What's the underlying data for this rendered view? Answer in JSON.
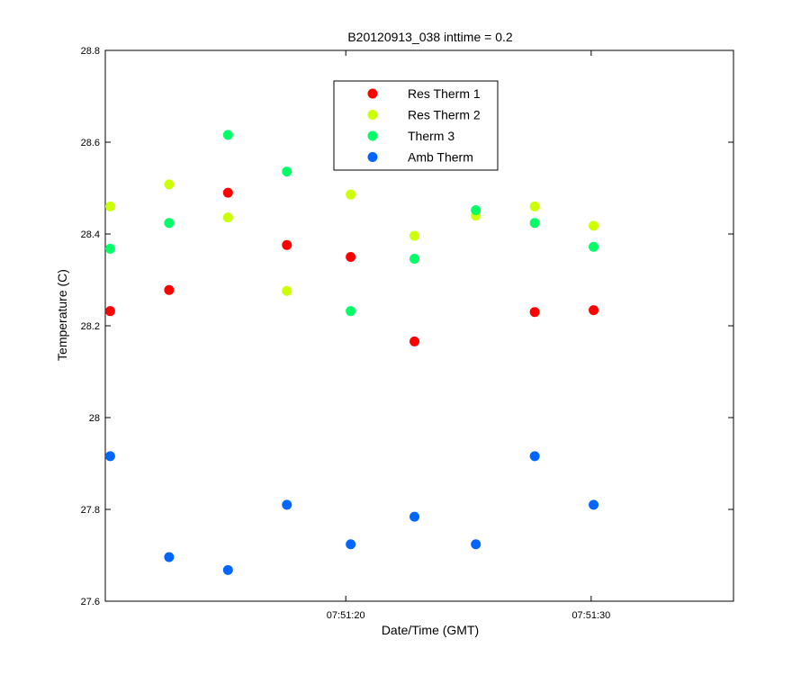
{
  "chart_data": {
    "type": "scatter",
    "title": "B20120913_038 inttime = 0.2",
    "xlabel": "Date/Time (GMT)",
    "ylabel": "Temperature (C)",
    "x_axis": {
      "range": [
        "07:51:10.2",
        "07:51:35.8"
      ],
      "ticks": [
        "07:51:20",
        "07:51:30"
      ]
    },
    "y_axis": {
      "range": [
        27.6,
        28.8
      ],
      "ticks": [
        "27.6",
        "27.8",
        "28",
        "28.2",
        "28.4",
        "28.6",
        "28.8"
      ]
    },
    "grid": false,
    "legend": {
      "placement": "top-center"
    },
    "x": [
      "07:51:10.4",
      "07:51:12.8",
      "07:51:15.2",
      "07:51:17.6",
      "07:51:20.2",
      "07:51:22.8",
      "07:51:25.3",
      "07:51:27.7",
      "07:51:30.1"
    ],
    "series": [
      {
        "name": "Res Therm 1",
        "color": "#ff0000",
        "points": [
          [
            "07:51:10.4",
            28.232
          ],
          [
            "07:51:12.8",
            28.278
          ],
          [
            "07:51:15.2",
            28.49
          ],
          [
            "07:51:17.6",
            28.376
          ],
          [
            "07:51:20.2",
            28.35
          ],
          [
            "07:51:22.8",
            28.166
          ],
          [
            "07:51:27.7",
            28.23
          ],
          [
            "07:51:30.1",
            28.234
          ]
        ]
      },
      {
        "name": "Res Therm 2",
        "color": "#ccff00",
        "points": [
          [
            "07:51:10.4",
            28.46
          ],
          [
            "07:51:12.8",
            28.508
          ],
          [
            "07:51:15.2",
            28.436
          ],
          [
            "07:51:17.6",
            28.276
          ],
          [
            "07:51:20.2",
            28.486
          ],
          [
            "07:51:22.8",
            28.396
          ],
          [
            "07:51:25.3",
            28.44
          ],
          [
            "07:51:27.7",
            28.46
          ],
          [
            "07:51:30.1",
            28.418
          ]
        ]
      },
      {
        "name": "Therm 3",
        "color": "#00ff66",
        "points": [
          [
            "07:51:10.4",
            28.368
          ],
          [
            "07:51:12.8",
            28.424
          ],
          [
            "07:51:15.2",
            28.616
          ],
          [
            "07:51:17.6",
            28.536
          ],
          [
            "07:51:20.2",
            28.232
          ],
          [
            "07:51:22.8",
            28.346
          ],
          [
            "07:51:25.3",
            28.452
          ],
          [
            "07:51:27.7",
            28.424
          ],
          [
            "07:51:30.1",
            28.372
          ]
        ]
      },
      {
        "name": "Amb Therm",
        "color": "#0066ff",
        "points": [
          [
            "07:51:10.4",
            27.916
          ],
          [
            "07:51:12.8",
            27.696
          ],
          [
            "07:51:15.2",
            27.668
          ],
          [
            "07:51:17.6",
            27.81
          ],
          [
            "07:51:20.2",
            27.724
          ],
          [
            "07:51:22.8",
            27.784
          ],
          [
            "07:51:25.3",
            27.724
          ],
          [
            "07:51:27.7",
            27.916
          ],
          [
            "07:51:30.1",
            27.81
          ]
        ]
      }
    ]
  }
}
